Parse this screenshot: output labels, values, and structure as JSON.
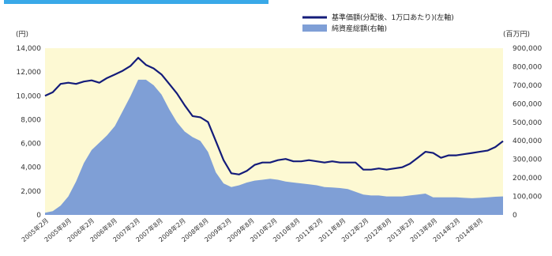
{
  "colors": {
    "plot_background": "#fdf9d3",
    "line": "#141c7a",
    "area": "#7f9fd6",
    "top_bar": "#39a9e8"
  },
  "chart_data": {
    "type": "line",
    "left_unit": "(円)",
    "right_unit": "(百万円)",
    "ylim_left": [
      0,
      14000
    ],
    "ylim_right": [
      0,
      900000
    ],
    "y_ticks_left": [
      "0",
      "2,000",
      "4,000",
      "6,000",
      "8,000",
      "10,000",
      "12,000",
      "14,000"
    ],
    "y_ticks_right": [
      "0",
      "100,000",
      "200,000",
      "300,000",
      "400,000",
      "500,000",
      "600,000",
      "700,000",
      "800,000",
      "900,000"
    ],
    "x_tick_labels": [
      "2005年2月",
      "2005年8月",
      "2006年2月",
      "2006年8月",
      "2007年2月",
      "2007年8月",
      "2008年2月",
      "2008年8月",
      "2009年2月",
      "2009年8月",
      "2010年2月",
      "2010年8月",
      "2011年2月",
      "2011年8月",
      "2012年2月",
      "2012年8月",
      "2013年2月",
      "2013年8月",
      "2014年2月",
      "2014年8月"
    ],
    "legend": {
      "line_label": "基準価額(分配後、1万口あたり)(左軸)",
      "area_label": "純資産総額(右軸)"
    },
    "series": [
      {
        "name": "基準価額(分配後、1万口あたり)(左軸)",
        "axis": "left",
        "x": [
          "2005-02",
          "2005-04",
          "2005-06",
          "2005-08",
          "2005-10",
          "2005-12",
          "2006-02",
          "2006-04",
          "2006-06",
          "2006-08",
          "2006-10",
          "2006-12",
          "2007-02",
          "2007-04",
          "2007-06",
          "2007-08",
          "2007-10",
          "2007-12",
          "2008-02",
          "2008-04",
          "2008-06",
          "2008-08",
          "2008-10",
          "2008-12",
          "2009-02",
          "2009-04",
          "2009-06",
          "2009-08",
          "2009-10",
          "2009-12",
          "2010-02",
          "2010-04",
          "2010-06",
          "2010-08",
          "2010-10",
          "2010-12",
          "2011-02",
          "2011-04",
          "2011-06",
          "2011-08",
          "2011-10",
          "2011-12",
          "2012-02",
          "2012-04",
          "2012-06",
          "2012-08",
          "2012-10",
          "2012-12",
          "2013-02",
          "2013-04",
          "2013-06",
          "2013-08",
          "2013-10",
          "2013-12",
          "2014-02",
          "2014-04",
          "2014-06",
          "2014-08",
          "2014-10",
          "2014-12"
        ],
        "values": [
          10000,
          10300,
          11000,
          11100,
          11000,
          11200,
          11300,
          11100,
          11500,
          11800,
          12100,
          12500,
          13200,
          12600,
          12300,
          11800,
          11000,
          10200,
          9200,
          8300,
          8200,
          7800,
          6200,
          4600,
          3500,
          3400,
          3700,
          4200,
          4400,
          4400,
          4600,
          4700,
          4500,
          4500,
          4600,
          4500,
          4400,
          4500,
          4400,
          4400,
          4400,
          3800,
          3800,
          3900,
          3800,
          3900,
          4000,
          4300,
          4800,
          5300,
          5200,
          4800,
          5000,
          5000,
          5100,
          5200,
          5300,
          5400,
          5700,
          6200
        ]
      },
      {
        "name": "純資産総額(右軸)",
        "axis": "right",
        "x": [
          "2005-02",
          "2005-04",
          "2005-06",
          "2005-08",
          "2005-10",
          "2005-12",
          "2006-02",
          "2006-04",
          "2006-06",
          "2006-08",
          "2006-10",
          "2006-12",
          "2007-02",
          "2007-04",
          "2007-06",
          "2007-08",
          "2007-10",
          "2007-12",
          "2008-02",
          "2008-04",
          "2008-06",
          "2008-08",
          "2008-10",
          "2008-12",
          "2009-02",
          "2009-04",
          "2009-06",
          "2009-08",
          "2009-10",
          "2009-12",
          "2010-02",
          "2010-04",
          "2010-06",
          "2010-08",
          "2010-10",
          "2010-12",
          "2011-02",
          "2011-04",
          "2011-06",
          "2011-08",
          "2011-10",
          "2011-12",
          "2012-02",
          "2012-04",
          "2012-06",
          "2012-08",
          "2012-10",
          "2012-12",
          "2013-02",
          "2013-04",
          "2013-06",
          "2013-08",
          "2013-10",
          "2013-12",
          "2014-02",
          "2014-04",
          "2014-06",
          "2014-08",
          "2014-10",
          "2014-12"
        ],
        "values": [
          12000,
          20000,
          50000,
          100000,
          180000,
          280000,
          350000,
          390000,
          430000,
          480000,
          560000,
          640000,
          730000,
          730000,
          700000,
          650000,
          570000,
          500000,
          450000,
          420000,
          400000,
          340000,
          230000,
          170000,
          150000,
          160000,
          175000,
          185000,
          190000,
          195000,
          190000,
          180000,
          175000,
          170000,
          165000,
          160000,
          150000,
          148000,
          145000,
          140000,
          125000,
          110000,
          105000,
          105000,
          100000,
          100000,
          100000,
          105000,
          110000,
          115000,
          95000,
          95000,
          95000,
          95000,
          92000,
          90000,
          92000,
          95000,
          98000,
          100000
        ]
      }
    ]
  }
}
